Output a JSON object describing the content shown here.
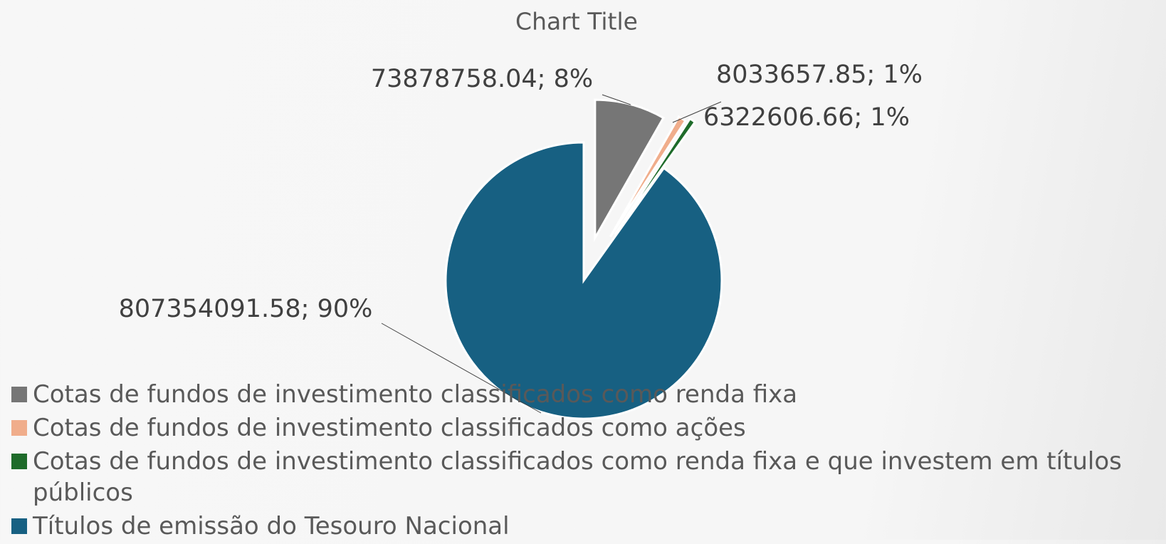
{
  "chart_data": {
    "type": "pie",
    "title": "Chart Title",
    "categories": [
      "Cotas de fundos de investimento classificados como renda fixa",
      "Cotas de fundos de investimento classificados como ações",
      "Cotas de fundos de investimento classificados como renda fixa e que investem em títulos públicos",
      "Títulos de emissão do Tesouro Nacional"
    ],
    "values": [
      73878758.04,
      8033657.85,
      6322606.66,
      807354091.58
    ],
    "value_labels": [
      "73878758.04; 8%",
      "8033657.85; 1%",
      "6322606.66; 1%",
      "807354091.58; 90%"
    ],
    "colors": [
      "#767676",
      "#f0ad8b",
      "#1e6b2a",
      "#176082"
    ],
    "legend": "bottom"
  }
}
